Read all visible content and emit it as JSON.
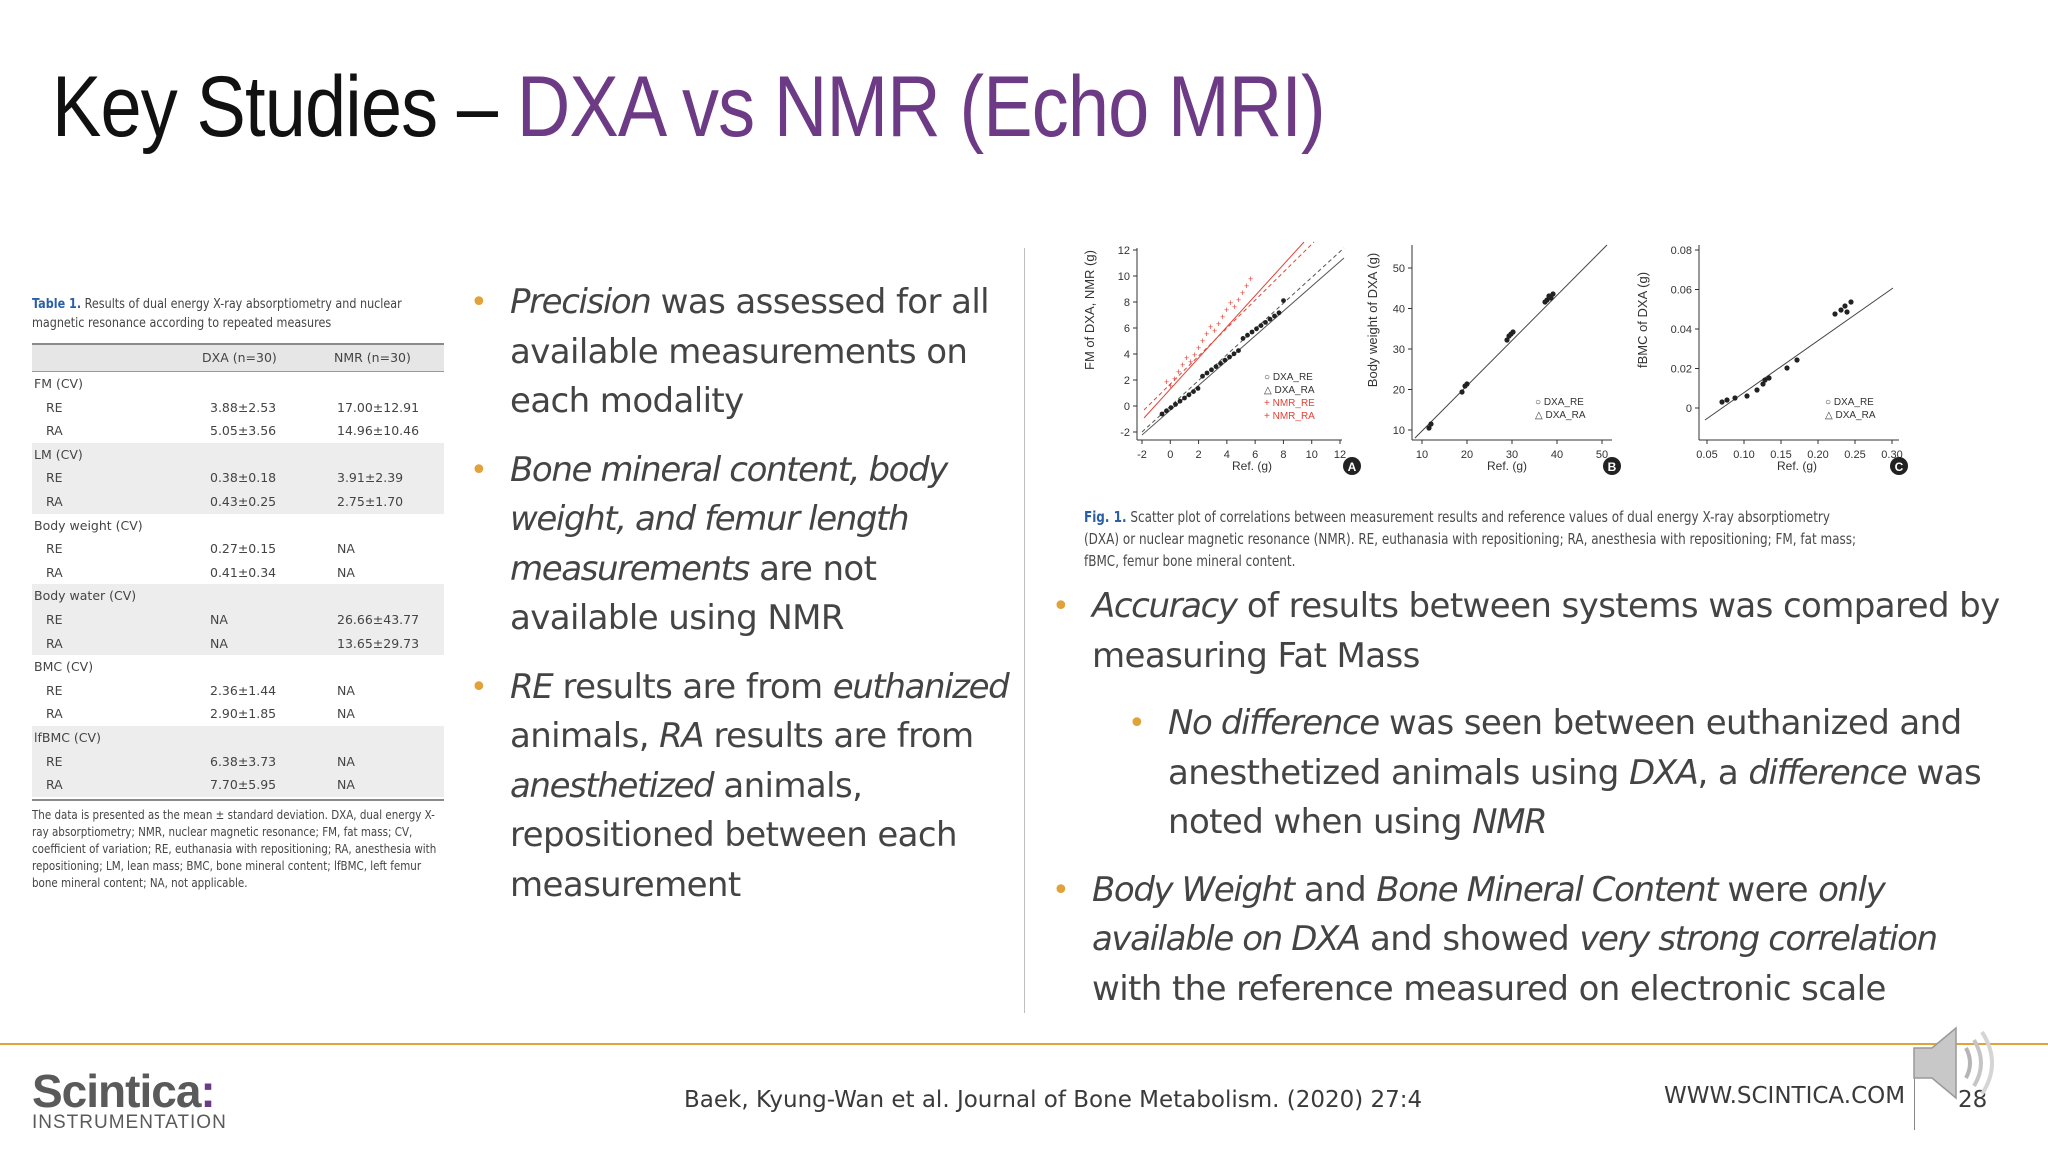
{
  "title": {
    "prefix": "Key Studies –",
    "accent": "DXA vs NMR (Echo MRI)"
  },
  "table": {
    "caption_label": "Table 1.",
    "caption_text": "Results of dual energy X-ray absorptiometry and nuclear magnetic resonance according to repeated measures",
    "col_dxa": "DXA (n=30)",
    "col_nmr": "NMR (n=30)",
    "rows": [
      {
        "label": "FM (CV)",
        "group": true,
        "shade": false
      },
      {
        "label": "RE",
        "dxa": "3.88±2.53",
        "nmr": "17.00±12.91",
        "shade": false
      },
      {
        "label": "RA",
        "dxa": "5.05±3.56",
        "nmr": "14.96±10.46",
        "shade": false
      },
      {
        "label": "LM (CV)",
        "group": true,
        "shade": true
      },
      {
        "label": "RE",
        "dxa": "0.38±0.18",
        "nmr": "3.91±2.39",
        "shade": true
      },
      {
        "label": "RA",
        "dxa": "0.43±0.25",
        "nmr": "2.75±1.70",
        "shade": true
      },
      {
        "label": "Body weight (CV)",
        "group": true,
        "shade": false
      },
      {
        "label": "RE",
        "dxa": "0.27±0.15",
        "nmr": "NA",
        "shade": false
      },
      {
        "label": "RA",
        "dxa": "0.41±0.34",
        "nmr": "NA",
        "shade": false
      },
      {
        "label": "Body water (CV)",
        "group": true,
        "shade": true
      },
      {
        "label": "RE",
        "dxa": "NA",
        "nmr": "26.66±43.77",
        "shade": true
      },
      {
        "label": "RA",
        "dxa": "NA",
        "nmr": "13.65±29.73",
        "shade": true
      },
      {
        "label": "BMC (CV)",
        "group": true,
        "shade": false
      },
      {
        "label": "RE",
        "dxa": "2.36±1.44",
        "nmr": "NA",
        "shade": false
      },
      {
        "label": "RA",
        "dxa": "2.90±1.85",
        "nmr": "NA",
        "shade": false
      },
      {
        "label": "lfBMC (CV)",
        "group": true,
        "shade": true
      },
      {
        "label": "RE",
        "dxa": "6.38±3.73",
        "nmr": "NA",
        "shade": true
      },
      {
        "label": "RA",
        "dxa": "7.70±5.95",
        "nmr": "NA",
        "shade": true
      }
    ],
    "note": "The data is presented as the mean ± standard deviation. DXA, dual energy X-ray absorptiometry; NMR, nuclear magnetic resonance; FM, fat mass; CV, coefficient of variation; RE, euthanasia with repositioning; RA, anesthesia with repositioning; LM, lean mass; BMC, bone mineral content; lfBMC, left femur bone mineral content; NA, not applicable."
  },
  "bullets_left": [
    {
      "i1": "Precision",
      "t1": " was assessed for all available measurements on each modality"
    },
    {
      "i1": "Bone mineral content, body weight, and femur length measurements",
      "t1": " are not available using NMR"
    },
    {
      "i1": "RE",
      "t1": " results are from ",
      "i2": "euthanized",
      "t2": " animals, ",
      "i3": "RA",
      "t3": " results are from ",
      "i4": "anesthetized",
      "t4": " animals, repositioned between each measurement"
    }
  ],
  "bullets_right": [
    {
      "i1": "Accuracy",
      "t1": " of results between systems was compared by measuring Fat Mass"
    },
    {
      "i1": "No difference",
      "t1": " was seen between euthanized and anesthetized animals using ",
      "i2": "DXA",
      "t2": ", a ",
      "i3": "difference",
      "t3": " was noted when using ",
      "i4": "NMR",
      "t4": ""
    },
    {
      "i1": "Body Weight",
      "t1": " and ",
      "i2": "Bone Mineral Content",
      "t2": " were ",
      "i3": "only available on DXA",
      "t3": " and showed ",
      "i4": "very strong correlation",
      "t4": " with the reference measured on electronic scale"
    }
  ],
  "figure": {
    "caption_label": "Fig. 1.",
    "caption_text": "Scatter plot of correlations between measurement results and reference values of dual energy X-ray absorptiometry (DXA) or nuclear magnetic resonance (NMR). RE, euthanasia with repositioning; RA, anesthesia with repositioning; FM, fat mass; fBMC, femur bone mineral content.",
    "panel_a": {
      "ylabel": "FM of DXA, NMR (g)",
      "xlabel": "Ref. (g)",
      "badge": "A",
      "yticks": [
        "12",
        "10",
        "8",
        "6",
        "4",
        "2",
        "0",
        "-2"
      ],
      "xticks": [
        "-2",
        "0",
        "2",
        "4",
        "6",
        "8",
        "10",
        "12"
      ],
      "legend": [
        "DXA_RE",
        "DXA_RA",
        "NMR_RE",
        "NMR_RA"
      ]
    },
    "panel_b": {
      "ylabel": "Body weight of DXA (g)",
      "xlabel": "Ref. (g)",
      "badge": "B",
      "yticks": [
        "50",
        "40",
        "30",
        "20",
        "10"
      ],
      "xticks": [
        "10",
        "20",
        "30",
        "40",
        "50"
      ],
      "legend": [
        "DXA_RE",
        "DXA_RA"
      ]
    },
    "panel_c": {
      "ylabel": "fBMC of DXA (g)",
      "xlabel": "Ref. (g)",
      "badge": "C",
      "yticks": [
        "0.08",
        "0.06",
        "0.04",
        "0.02",
        "0"
      ],
      "xticks": [
        "0.05",
        "0.10",
        "0.15",
        "0.20",
        "0.25",
        "0.30"
      ],
      "legend": [
        "DXA_RE",
        "DXA_RA"
      ]
    }
  },
  "footer": {
    "logo_main": "Scintica",
    "logo_sub": "INSTRUMENTATION",
    "citation": "Baek, Kyung-Wan et al. Journal of Bone Metabolism. (2020) 27:4",
    "website": "WWW.SCINTICA.COM",
    "page_number": "28"
  },
  "colors": {
    "accent_purple": "#6d3a86",
    "bullet_orange": "#e2a23a",
    "nmr_red": "#e0443a"
  }
}
